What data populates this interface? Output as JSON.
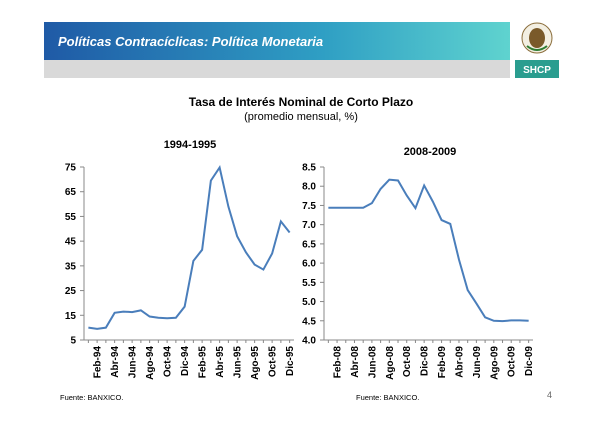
{
  "header": {
    "title": "Políticas Contracíclicas: Política Monetaria",
    "logo": "SHCP"
  },
  "title": "Tasa de Interés Nominal de Corto Plazo",
  "subtitle": "(promedio mensual, %)",
  "page_number": "4",
  "chart_data": [
    {
      "type": "line",
      "title": "1994-1995",
      "source": "Fuente: BANXICO.",
      "color": "#4a7ebb",
      "categories": [
        null,
        "Feb-94",
        null,
        "Abr-94",
        null,
        "Jun-94",
        null,
        "Ago-94",
        null,
        "Oct-94",
        null,
        "Dic-94",
        null,
        "Feb-95",
        null,
        "Abr-95",
        null,
        "Jun-95",
        null,
        "Ago-95",
        null,
        "Oct-95",
        null,
        "Dic-95"
      ],
      "values": [
        10,
        9.5,
        10,
        16,
        16.5,
        16.3,
        17,
        14.5,
        14,
        13.8,
        14,
        18.5,
        37,
        41.5,
        69.5,
        74.8,
        59,
        47,
        40.5,
        35.5,
        33.5,
        40,
        53,
        48.5
      ],
      "ylim": [
        5,
        75
      ],
      "yticks": [
        5,
        15,
        25,
        35,
        45,
        55,
        65,
        75
      ]
    },
    {
      "type": "line",
      "title": "2008-2009",
      "source": "Fuente: BANXICO.",
      "color": "#4a7ebb",
      "categories": [
        null,
        "Feb-08",
        null,
        "Abr-08",
        null,
        "Jun-08",
        null,
        "Ago-08",
        null,
        "Oct-08",
        null,
        "Dic-08",
        null,
        "Feb-09",
        null,
        "Abr-09",
        null,
        "Jun-09",
        null,
        "Ago-09",
        null,
        "Oct-09",
        null,
        "Dic-09"
      ],
      "values": [
        7.44,
        7.44,
        7.44,
        7.44,
        7.44,
        7.56,
        7.93,
        8.17,
        8.15,
        7.76,
        7.43,
        8.02,
        7.6,
        7.12,
        7.02,
        6.09,
        5.3,
        4.95,
        4.59,
        4.5,
        4.49,
        4.51,
        4.51,
        4.5
      ],
      "ylim": [
        4,
        8.5
      ],
      "yticks": [
        {
          "value": 4,
          "label": "4.0"
        },
        {
          "value": 4.5,
          "label": "4.5"
        },
        {
          "value": 5,
          "label": "5.0"
        },
        {
          "value": 5.5,
          "label": "5.5"
        },
        {
          "value": 6,
          "label": "6.0"
        },
        {
          "value": 6.5,
          "label": "6.5"
        },
        {
          "value": 7,
          "label": "7.0"
        },
        {
          "value": 7.5,
          "label": "7.5"
        },
        {
          "value": 8,
          "label": "8.0"
        },
        {
          "value": 8.5,
          "label": "8.5"
        }
      ]
    }
  ]
}
